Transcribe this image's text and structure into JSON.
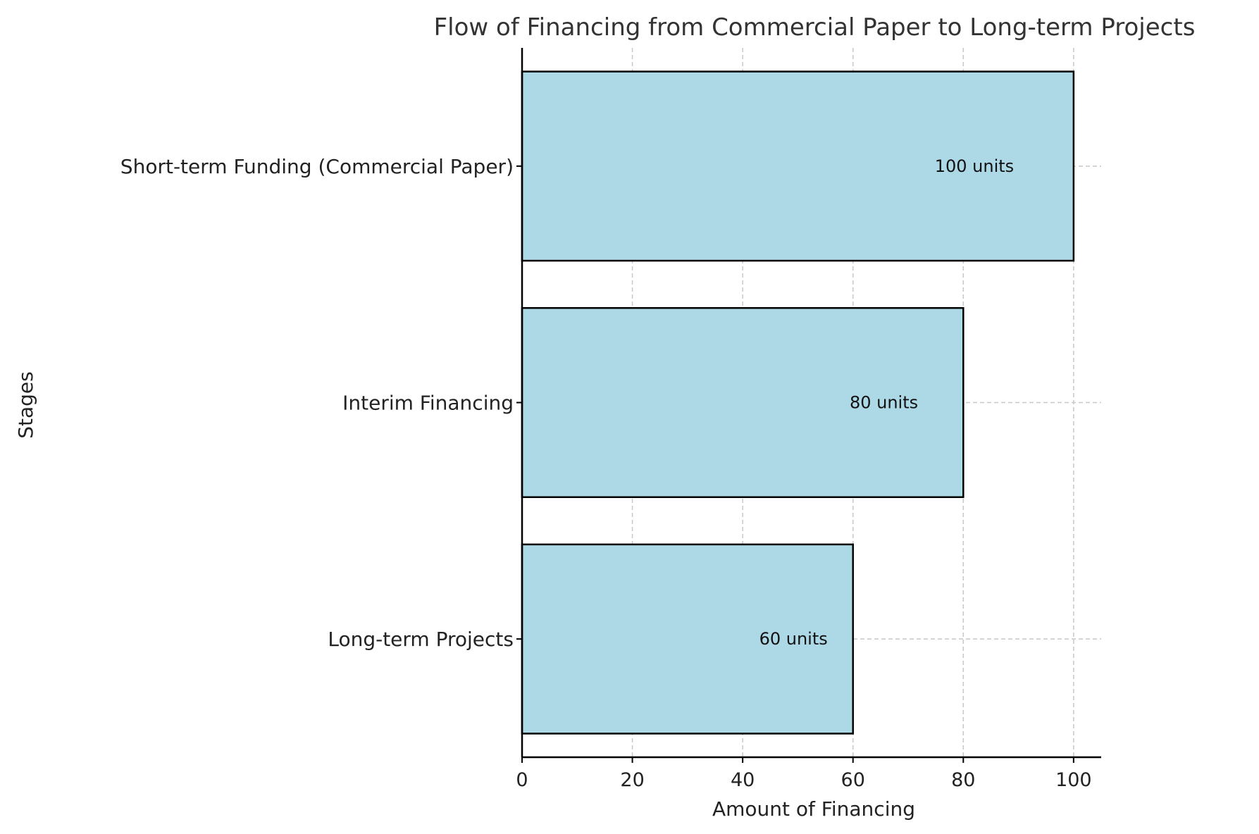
{
  "chart_data": {
    "type": "bar",
    "orientation": "horizontal",
    "title": "Flow of Financing from Commercial Paper to Long-term Projects",
    "xlabel": "Amount of Financing",
    "ylabel": "Stages",
    "categories": [
      "Short-term Funding (Commercial Paper)",
      "Interim Financing",
      "Long-term Projects"
    ],
    "values": [
      100,
      80,
      60
    ],
    "bar_labels": [
      "100 units",
      "80 units",
      "60 units"
    ],
    "xlim": [
      0,
      105
    ],
    "xticks": [
      0,
      20,
      40,
      60,
      80,
      100
    ],
    "xtick_labels": [
      "0",
      "20",
      "40",
      "60",
      "80",
      "100"
    ],
    "grid": true,
    "colors": {
      "bar_fill": "#add8e6",
      "bar_edge": "#000000",
      "grid": "#c8c8c8",
      "axis": "#000000"
    }
  }
}
